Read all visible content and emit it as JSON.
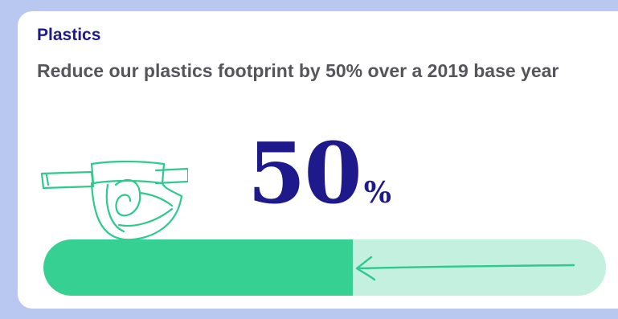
{
  "card": {
    "eyebrow": "Plastics",
    "headline": "Reduce our plastics footprint by 50% over a 2019 base year",
    "big_number": "50",
    "big_number_suffix": "%"
  },
  "progress": {
    "fraction": 0.55
  },
  "icons": {
    "illustration": "diaper-icon",
    "arrow": "arrow-left-icon"
  },
  "colors": {
    "accent_navy": "#1e1a8c",
    "text_gray": "#56565a",
    "progress_fill": "#36d093",
    "progress_track": "#c3f0df",
    "illustration_stroke": "#2fc98d",
    "page_background": "#b9c8f0"
  }
}
